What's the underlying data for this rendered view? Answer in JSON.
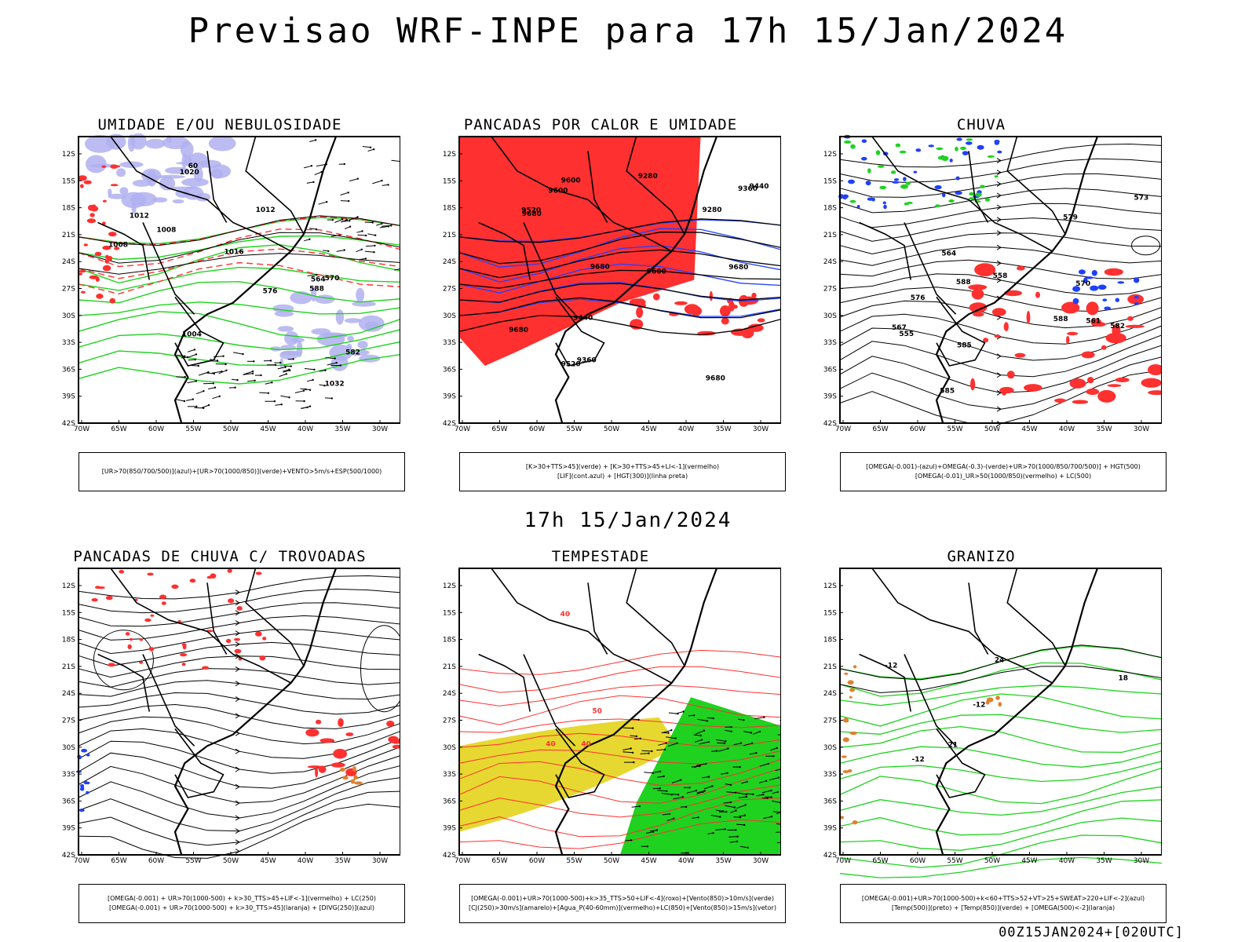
{
  "header": {
    "title": "Previsao WRF-INPE  para 17h 15/Jan/2024",
    "mid_title": "17h 15/Jan/2024",
    "footer": "00Z15JAN2024+[020UTC]"
  },
  "axes": {
    "lat_labels": [
      "12S",
      "15S",
      "18S",
      "21S",
      "24S",
      "27S",
      "30S",
      "33S",
      "36S",
      "39S",
      "42S"
    ],
    "lon_labels": [
      "70W",
      "65W",
      "60W",
      "55W",
      "50W",
      "45W",
      "40W",
      "35W",
      "30W"
    ]
  },
  "colors": {
    "green": "#1fd21f",
    "red": "#ff3030",
    "blue": "#2040ff",
    "lavender": "#b0b0f0",
    "yellow": "#e6d830",
    "orange": "#e08030",
    "black": "#000000"
  },
  "panels": [
    {
      "title": "UMIDADE E/OU NEBULOSIDADE",
      "legend": [
        "[UR>70(850/700/500)](azul)+[UR>70(1000/850)](verde)+VENTO>5m/s+ESP(500/1000)"
      ],
      "contour_labels": [
        "1008",
        "1012",
        "1016",
        "1020",
        "1004",
        "1012",
        "1008",
        "576",
        "582",
        "588",
        "60",
        "564",
        "1032",
        "570"
      ]
    },
    {
      "title": "PANCADAS POR CALOR E UMIDADE",
      "legend": [
        "[K>30+TTS>45](verde) + [K>30+TTS>45+LI<-1](vermelho)",
        "[LIF](cont.azul) + [HGT(300)](linha preta)"
      ],
      "contour_labels": [
        "9600",
        "9680",
        "9680",
        "9680",
        "9680",
        "9680",
        "9600",
        "9520",
        "9440",
        "9360",
        "9280",
        "9600",
        "9520",
        "9440",
        "9360",
        "9280"
      ]
    },
    {
      "title": "CHUVA",
      "legend": [
        "[OMEGA(-0.001)-(azul)+OMEGA(-0.3)-(verde)+UR>70(1000/850/700/500)] + HGT(500)",
        "[OMEGA(-0.01)_UR>50(1000/850)(vermelho) + LC(500)"
      ],
      "contour_labels": [
        "585",
        "588",
        "588",
        "585",
        "582",
        "579",
        "576",
        "573",
        "570",
        "567",
        "564",
        "561",
        "558",
        "555"
      ]
    },
    {
      "title": "PANCADAS DE CHUVA C/ TROVOADAS",
      "legend": [
        "[OMEGA(-0.001) + UR>70(1000-500) + k>30_TTS>45+LIF<-1](vermelho) + LC(250)",
        "[OMEGA(-0.001) + UR>70(1000-500) + k>30_TTS>45](laranja) + [DIVG(250)](azul)"
      ],
      "contour_labels": []
    },
    {
      "title": "TEMPESTADE",
      "legend": [
        "[OMEGA(-0.001)+UR>70(1000-500)+k>35_TTS>50+LIF<-4](roxo)+[Vento(850)>10m/s](verde)",
        "[CJ(250)>30m/s](amarelo)+[Agua_P(40-60mm)](vermelho)+LC(850)+[Vento(850)>15m/s](vetor)"
      ],
      "contour_labels": [
        "40",
        "40",
        "40",
        "50"
      ]
    },
    {
      "title": "GRANIZO",
      "legend": [
        "[OMEGA(-0.001)+UR>70(1000-500)+k<60+TTS>52+VT>25+SWEAT>220+LIF<-2](azul)",
        "[Temp(500)](preto) + [Temp(850)](verde) + [OMEGA(500)<-2](laranja)"
      ],
      "contour_labels": [
        "-12",
        "-12",
        "-12",
        "18",
        "21",
        "24"
      ]
    }
  ]
}
